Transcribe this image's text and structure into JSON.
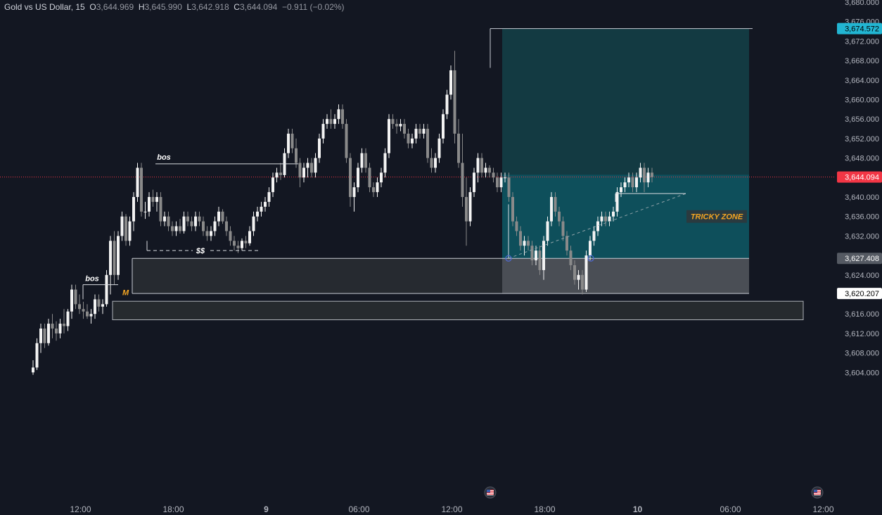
{
  "header": {
    "symbol": "Gold vs US Dollar",
    "interval": "15",
    "open_label": "O",
    "open": "3,644.969",
    "high_label": "H",
    "high": "3,645.990",
    "low_label": "L",
    "low": "3,642.918",
    "close_label": "C",
    "close": "3,644.094",
    "change": "−0.911 (−0.02%)"
  },
  "chart_data": {
    "type": "candlestick",
    "y_axis": {
      "range": [
        3603,
        3681
      ],
      "ticks": [
        "3,604.000",
        "3,608.000",
        "3,612.000",
        "3,616.000",
        "3,620.000",
        "3,624.000",
        "3,628.000",
        "3,632.000",
        "3,636.000",
        "3,640.000",
        "3,644.000",
        "3,648.000",
        "3,652.000",
        "3,656.000",
        "3,660.000",
        "3,664.000",
        "3,668.000",
        "3,672.000",
        "3,676.000",
        "3,680.000"
      ]
    },
    "x_axis": {
      "labels": [
        {
          "label": "12:00",
          "bar": 7,
          "bold": false
        },
        {
          "label": "18:00",
          "bar": 31,
          "bold": false
        },
        {
          "label": "9",
          "bar": 55,
          "bold": true
        },
        {
          "label": "06:00",
          "bar": 79,
          "bold": false
        },
        {
          "label": "12:00",
          "bar": 103,
          "bold": false
        },
        {
          "label": "18:00",
          "bar": 127,
          "bold": false
        },
        {
          "label": "10",
          "bar": 151,
          "bold": true
        },
        {
          "label": "06:00",
          "bar": 175,
          "bold": false
        },
        {
          "label": "12:00",
          "bar": 199,
          "bold": false
        }
      ]
    },
    "price_tags": [
      {
        "value": 3674.572,
        "label": "3,674.572",
        "bg": "#22b5d2",
        "fg": "#000000"
      },
      {
        "value": 3644.094,
        "label": "3,644.094",
        "bg": "#f23645",
        "fg": "#ffffff"
      },
      {
        "value": 3627.408,
        "label": "3,627.408",
        "bg": "#555a63",
        "fg": "#ffffff"
      },
      {
        "value": 3620.207,
        "label": "3,620.207",
        "bg": "#ffffff",
        "fg": "#000000"
      }
    ],
    "current_price": 3644.094,
    "candles": [
      [
        3604.0,
        3606.5,
        3603.5,
        3605.0
      ],
      [
        3605.0,
        3611.0,
        3604.5,
        3610.0
      ],
      [
        3610.0,
        3614.0,
        3608.0,
        3613.0
      ],
      [
        3613.0,
        3614.0,
        3609.0,
        3610.0
      ],
      [
        3610.0,
        3615.0,
        3609.5,
        3614.0
      ],
      [
        3614.0,
        3616.0,
        3611.0,
        3613.0
      ],
      [
        3613.0,
        3614.5,
        3610.5,
        3612.0
      ],
      [
        3612.0,
        3615.0,
        3611.0,
        3614.0
      ],
      [
        3614.0,
        3617.0,
        3612.0,
        3613.5
      ],
      [
        3613.5,
        3617.0,
        3612.5,
        3616.5
      ],
      [
        3616.5,
        3622.0,
        3615.0,
        3621.0
      ],
      [
        3621.0,
        3622.0,
        3617.0,
        3618.0
      ],
      [
        3618.0,
        3620.0,
        3616.0,
        3617.0
      ],
      [
        3617.0,
        3618.5,
        3615.0,
        3616.5
      ],
      [
        3616.5,
        3618.0,
        3615.0,
        3615.5
      ],
      [
        3615.5,
        3617.0,
        3614.0,
        3616.0
      ],
      [
        3616.0,
        3620.0,
        3615.0,
        3619.0
      ],
      [
        3619.0,
        3620.0,
        3616.5,
        3617.5
      ],
      [
        3617.5,
        3619.0,
        3616.0,
        3618.0
      ],
      [
        3618.0,
        3625.0,
        3617.5,
        3624.0
      ],
      [
        3624.0,
        3632.0,
        3620.0,
        3631.0
      ],
      [
        3631.0,
        3633.0,
        3622.0,
        3624.0
      ],
      [
        3624.0,
        3633.0,
        3623.0,
        3632.0
      ],
      [
        3632.0,
        3637.0,
        3631.0,
        3636.0
      ],
      [
        3636.0,
        3636.5,
        3630.0,
        3631.0
      ],
      [
        3631.0,
        3636.0,
        3630.0,
        3635.0
      ],
      [
        3635.0,
        3641.0,
        3633.0,
        3640.0
      ],
      [
        3640.0,
        3647.0,
        3639.0,
        3646.0
      ],
      [
        3646.0,
        3647.0,
        3636.0,
        3637.0
      ],
      [
        3637.0,
        3639.0,
        3635.5,
        3637.0
      ],
      [
        3637.0,
        3641.0,
        3636.0,
        3640.0
      ],
      [
        3640.0,
        3641.5,
        3638.0,
        3639.0
      ],
      [
        3639.0,
        3641.0,
        3637.0,
        3640.0
      ],
      [
        3640.0,
        3641.0,
        3634.0,
        3635.0
      ],
      [
        3635.0,
        3637.0,
        3634.0,
        3636.0
      ],
      [
        3636.0,
        3637.0,
        3633.0,
        3634.0
      ],
      [
        3634.0,
        3635.0,
        3632.0,
        3633.0
      ],
      [
        3633.0,
        3635.0,
        3632.0,
        3634.0
      ],
      [
        3634.0,
        3635.5,
        3632.5,
        3633.0
      ],
      [
        3633.0,
        3637.0,
        3632.5,
        3636.0
      ],
      [
        3636.0,
        3637.0,
        3634.0,
        3635.0
      ],
      [
        3635.0,
        3636.0,
        3633.0,
        3634.0
      ],
      [
        3634.0,
        3637.0,
        3633.0,
        3636.0
      ],
      [
        3636.0,
        3637.0,
        3634.0,
        3635.0
      ],
      [
        3635.0,
        3636.0,
        3632.0,
        3633.0
      ],
      [
        3633.0,
        3634.0,
        3631.0,
        3632.0
      ],
      [
        3632.0,
        3634.0,
        3631.0,
        3633.0
      ],
      [
        3633.0,
        3636.0,
        3632.0,
        3635.0
      ],
      [
        3635.0,
        3638.0,
        3634.0,
        3637.0
      ],
      [
        3637.0,
        3637.5,
        3634.5,
        3635.0
      ],
      [
        3635.0,
        3636.0,
        3632.0,
        3633.0
      ],
      [
        3633.0,
        3634.0,
        3630.0,
        3631.0
      ],
      [
        3631.0,
        3632.0,
        3629.0,
        3630.0
      ],
      [
        3630.0,
        3631.0,
        3628.5,
        3629.5
      ],
      [
        3629.5,
        3631.5,
        3629.0,
        3631.0
      ],
      [
        3631.0,
        3632.0,
        3629.5,
        3630.5
      ],
      [
        3630.5,
        3634.0,
        3630.0,
        3633.0
      ],
      [
        3633.0,
        3637.0,
        3632.0,
        3636.0
      ],
      [
        3636.0,
        3638.0,
        3635.0,
        3637.0
      ],
      [
        3637.0,
        3639.0,
        3636.0,
        3638.0
      ],
      [
        3638.0,
        3640.0,
        3637.0,
        3639.0
      ],
      [
        3639.0,
        3642.0,
        3638.0,
        3641.0
      ],
      [
        3641.0,
        3645.0,
        3640.0,
        3644.0
      ],
      [
        3644.0,
        3646.0,
        3643.0,
        3645.0
      ],
      [
        3645.0,
        3647.0,
        3643.5,
        3644.5
      ],
      [
        3644.5,
        3650.0,
        3644.0,
        3649.0
      ],
      [
        3649.0,
        3654.0,
        3648.0,
        3653.0
      ],
      [
        3653.0,
        3654.0,
        3649.0,
        3650.0
      ],
      [
        3650.0,
        3652.0,
        3646.0,
        3647.0
      ],
      [
        3647.0,
        3648.0,
        3642.0,
        3644.0
      ],
      [
        3644.0,
        3647.0,
        3643.0,
        3646.0
      ],
      [
        3646.0,
        3648.0,
        3644.0,
        3647.0
      ],
      [
        3647.0,
        3648.0,
        3644.0,
        3645.0
      ],
      [
        3645.0,
        3649.0,
        3644.0,
        3648.0
      ],
      [
        3648.0,
        3653.0,
        3647.0,
        3652.0
      ],
      [
        3652.0,
        3656.0,
        3651.0,
        3655.0
      ],
      [
        3655.0,
        3657.0,
        3654.0,
        3656.0
      ],
      [
        3656.0,
        3658.0,
        3654.0,
        3655.0
      ],
      [
        3655.0,
        3657.0,
        3654.0,
        3656.0
      ],
      [
        3656.0,
        3659.0,
        3655.0,
        3658.0
      ],
      [
        3658.0,
        3659.0,
        3654.0,
        3655.0
      ],
      [
        3655.0,
        3656.0,
        3647.0,
        3648.0
      ],
      [
        3648.0,
        3649.0,
        3638.0,
        3640.0
      ],
      [
        3640.0,
        3643.0,
        3637.0,
        3642.0
      ],
      [
        3642.0,
        3647.0,
        3641.0,
        3646.0
      ],
      [
        3646.0,
        3650.0,
        3645.0,
        3649.0
      ],
      [
        3649.0,
        3650.0,
        3645.0,
        3646.0
      ],
      [
        3646.0,
        3647.0,
        3641.0,
        3642.0
      ],
      [
        3642.0,
        3643.0,
        3640.0,
        3641.0
      ],
      [
        3641.0,
        3644.0,
        3640.0,
        3643.0
      ],
      [
        3643.0,
        3646.0,
        3642.0,
        3645.0
      ],
      [
        3645.0,
        3650.0,
        3644.0,
        3649.0
      ],
      [
        3649.0,
        3657.0,
        3648.0,
        3656.0
      ],
      [
        3656.0,
        3657.0,
        3654.0,
        3655.0
      ],
      [
        3655.0,
        3656.0,
        3653.0,
        3654.5
      ],
      [
        3654.5,
        3656.0,
        3653.5,
        3655.0
      ],
      [
        3655.0,
        3656.0,
        3652.0,
        3653.0
      ],
      [
        3653.0,
        3654.0,
        3650.0,
        3651.0
      ],
      [
        3651.0,
        3653.0,
        3650.0,
        3652.0
      ],
      [
        3652.0,
        3655.0,
        3651.0,
        3654.0
      ],
      [
        3654.0,
        3655.0,
        3652.0,
        3653.0
      ],
      [
        3653.0,
        3655.0,
        3652.0,
        3654.0
      ],
      [
        3654.0,
        3655.0,
        3647.0,
        3648.0
      ],
      [
        3648.0,
        3650.0,
        3645.0,
        3646.0
      ],
      [
        3646.0,
        3649.0,
        3645.0,
        3648.0
      ],
      [
        3648.0,
        3653.0,
        3647.0,
        3652.0
      ],
      [
        3652.0,
        3658.0,
        3651.0,
        3657.0
      ],
      [
        3657.0,
        3662.0,
        3656.0,
        3661.0
      ],
      [
        3661.0,
        3667.0,
        3660.0,
        3666.0
      ],
      [
        3666.0,
        3670.0,
        3651.0,
        3653.0
      ],
      [
        3653.0,
        3656.0,
        3646.0,
        3647.0
      ],
      [
        3647.0,
        3653.0,
        3638.0,
        3640.0
      ],
      [
        3640.0,
        3644.0,
        3630.0,
        3635.0
      ],
      [
        3635.0,
        3642.0,
        3634.0,
        3641.0
      ],
      [
        3641.0,
        3646.0,
        3640.0,
        3645.0
      ],
      [
        3645.0,
        3649.0,
        3643.0,
        3648.0
      ],
      [
        3648.0,
        3649.0,
        3644.0,
        3645.0
      ],
      [
        3645.0,
        3647.0,
        3644.0,
        3646.0
      ],
      [
        3646.0,
        3646.5,
        3644.0,
        3645.0
      ],
      [
        3645.0,
        3646.0,
        3643.0,
        3644.0
      ],
      [
        3644.0,
        3645.0,
        3641.0,
        3642.0
      ],
      [
        3642.0,
        3645.0,
        3641.0,
        3644.0
      ],
      [
        3644.0,
        3645.0,
        3643.0,
        3644.0
      ],
      [
        3644.0,
        3645.0,
        3639.0,
        3640.0
      ],
      [
        3640.0,
        3641.0,
        3634.0,
        3635.0
      ],
      [
        3635.0,
        3636.0,
        3632.0,
        3633.0
      ],
      [
        3633.0,
        3634.0,
        3629.0,
        3630.0
      ],
      [
        3630.0,
        3632.0,
        3628.0,
        3631.0
      ],
      [
        3631.0,
        3632.0,
        3629.0,
        3630.0
      ],
      [
        3630.0,
        3631.0,
        3626.0,
        3627.0
      ],
      [
        3627.0,
        3630.0,
        3626.0,
        3629.0
      ],
      [
        3629.0,
        3630.0,
        3624.0,
        3625.0
      ],
      [
        3625.0,
        3632.0,
        3623.0,
        3631.0
      ],
      [
        3631.0,
        3636.0,
        3630.0,
        3635.0
      ],
      [
        3635.0,
        3641.0,
        3634.0,
        3640.0
      ],
      [
        3640.0,
        3641.0,
        3636.0,
        3637.0
      ],
      [
        3637.0,
        3638.0,
        3634.0,
        3635.0
      ],
      [
        3635.0,
        3636.0,
        3631.0,
        3632.0
      ],
      [
        3632.0,
        3633.0,
        3628.0,
        3629.0
      ],
      [
        3629.0,
        3630.0,
        3625.0,
        3626.0
      ],
      [
        3626.0,
        3627.0,
        3622.0,
        3623.0
      ],
      [
        3623.0,
        3625.0,
        3621.0,
        3624.0
      ],
      [
        3624.0,
        3625.0,
        3620.0,
        3621.0
      ],
      [
        3621.0,
        3629.0,
        3620.5,
        3628.0
      ],
      [
        3628.0,
        3632.0,
        3627.0,
        3631.0
      ],
      [
        3631.0,
        3634.0,
        3630.0,
        3633.0
      ],
      [
        3633.0,
        3636.0,
        3632.0,
        3635.0
      ],
      [
        3635.0,
        3637.0,
        3634.0,
        3636.0
      ],
      [
        3636.0,
        3637.0,
        3634.0,
        3635.0
      ],
      [
        3635.0,
        3637.0,
        3634.0,
        3636.0
      ],
      [
        3636.0,
        3638.0,
        3635.0,
        3637.0
      ],
      [
        3637.0,
        3642.0,
        3636.0,
        3641.0
      ],
      [
        3641.0,
        3643.0,
        3640.0,
        3642.0
      ],
      [
        3642.0,
        3644.0,
        3641.0,
        3643.0
      ],
      [
        3643.0,
        3645.0,
        3642.0,
        3644.0
      ],
      [
        3644.0,
        3645.0,
        3641.0,
        3642.0
      ],
      [
        3642.0,
        3645.0,
        3641.0,
        3644.0
      ],
      [
        3644.0,
        3647.0,
        3643.0,
        3646.0
      ],
      [
        3646.0,
        3647.0,
        3641.0,
        3643.0
      ],
      [
        3643.0,
        3646.0,
        3642.0,
        3645.0
      ],
      [
        3645.0,
        3646.0,
        3643.0,
        3644.094
      ]
    ],
    "annotations": {
      "bos_labels": [
        {
          "text": "bos",
          "bar": 7,
          "price": 3622.0
        },
        {
          "text": "bos",
          "bar": 27,
          "price": 3646.8
        }
      ],
      "liquidity_label": {
        "text": "$$",
        "price": 3629.0
      },
      "m_label": {
        "text": "M",
        "price": 3620.0
      },
      "zone_label": {
        "text": "TRICKY ZONE",
        "price": 3636.0
      },
      "position": {
        "entry": 3627.408,
        "target": 3674.572,
        "stop": 3620.207
      },
      "lower_zone": {
        "top": 3618.6,
        "bottom": 3614.8
      }
    }
  }
}
